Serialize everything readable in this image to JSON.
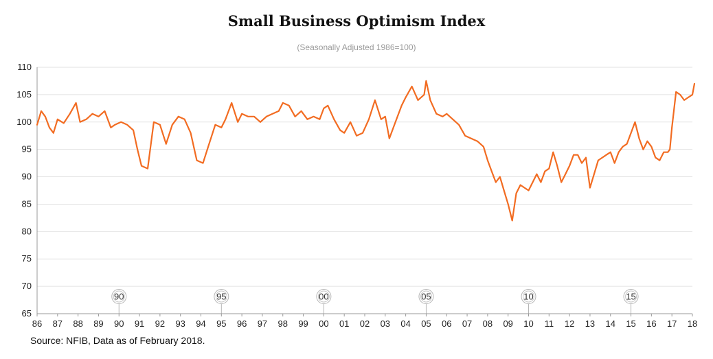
{
  "chart_data": {
    "type": "line",
    "title": "Small Business Optimism Index",
    "subtitle": "(Seasonally Adjusted 1986=100)",
    "source": "Source: NFIB, Data as of February 2018.",
    "xlabel": "",
    "ylabel": "",
    "xlim": [
      1986,
      2018
    ],
    "ylim": [
      65,
      110
    ],
    "y_ticks": [
      65,
      70,
      75,
      80,
      85,
      90,
      95,
      100,
      105,
      110
    ],
    "x_tick_labels": [
      "86",
      "87",
      "88",
      "89",
      "90",
      "91",
      "92",
      "93",
      "94",
      "95",
      "96",
      "97",
      "98",
      "99",
      "00",
      "01",
      "02",
      "03",
      "04",
      "05",
      "06",
      "07",
      "08",
      "09",
      "10",
      "11",
      "12",
      "13",
      "14",
      "15",
      "16",
      "17",
      "18"
    ],
    "grid": "horizontal",
    "line_color": "#f26c22",
    "markers": [
      {
        "label": "90",
        "x": 1990
      },
      {
        "label": "95",
        "x": 1995
      },
      {
        "label": "00",
        "x": 2000
      },
      {
        "label": "05",
        "x": 2005
      },
      {
        "label": "10",
        "x": 2010
      },
      {
        "label": "15",
        "x": 2015
      }
    ],
    "series": [
      {
        "x": [
          1986.0,
          1986.2,
          1986.4,
          1986.6,
          1986.8,
          1987.0,
          1987.3,
          1987.6,
          1987.9,
          1988.1,
          1988.4,
          1988.7,
          1989.0,
          1989.3,
          1989.6,
          1989.8,
          1990.1,
          1990.4,
          1990.7,
          1990.9,
          1991.1,
          1991.4,
          1991.7,
          1992.0,
          1992.3,
          1992.6,
          1992.9,
          1993.2,
          1993.5,
          1993.8,
          1994.1,
          1994.4,
          1994.7,
          1995.0,
          1995.2,
          1995.5,
          1995.8,
          1996.0,
          1996.3,
          1996.6,
          1996.9,
          1997.2,
          1997.5,
          1997.8,
          1998.0,
          1998.3,
          1998.6,
          1998.9,
          1999.2,
          1999.5,
          1999.8,
          2000.0,
          2000.2,
          2000.5,
          2000.8,
          2001.0,
          2001.3,
          2001.6,
          2001.9,
          2002.2,
          2002.5,
          2002.8,
          2003.0,
          2003.2,
          2003.5,
          2003.8,
          2004.0,
          2004.3,
          2004.6,
          2004.9,
          2005.0,
          2005.2,
          2005.5,
          2005.8,
          2006.0,
          2006.3,
          2006.6,
          2006.9,
          2007.2,
          2007.5,
          2007.8,
          2008.0,
          2008.2,
          2008.4,
          2008.6,
          2008.8,
          2009.0,
          2009.2,
          2009.4,
          2009.6,
          2009.8,
          2010.0,
          2010.2,
          2010.4,
          2010.6,
          2010.8,
          2011.0,
          2011.2,
          2011.4,
          2011.6,
          2011.8,
          2012.0,
          2012.2,
          2012.4,
          2012.6,
          2012.8,
          2013.0,
          2013.2,
          2013.4,
          2013.6,
          2013.8,
          2014.0,
          2014.2,
          2014.4,
          2014.6,
          2014.8,
          2015.0,
          2015.2,
          2015.4,
          2015.6,
          2015.8,
          2016.0,
          2016.2,
          2016.4,
          2016.6,
          2016.8,
          2016.9,
          2017.0,
          2017.2,
          2017.4,
          2017.6,
          2017.8,
          2018.0,
          2018.1
        ],
        "values": [
          99.5,
          102.0,
          101.0,
          99.0,
          98.0,
          100.5,
          99.8,
          101.5,
          103.5,
          100.0,
          100.5,
          101.5,
          101.0,
          102.0,
          99.0,
          99.5,
          100.0,
          99.5,
          98.5,
          95.0,
          92.0,
          91.5,
          100.0,
          99.5,
          96.0,
          99.5,
          101.0,
          100.5,
          98.0,
          93.0,
          92.5,
          96.0,
          99.5,
          99.0,
          100.5,
          103.5,
          100.0,
          101.5,
          101.0,
          101.0,
          100.0,
          101.0,
          101.5,
          102.0,
          103.5,
          103.0,
          101.0,
          102.0,
          100.5,
          101.0,
          100.5,
          102.5,
          103.0,
          100.5,
          98.5,
          98.0,
          100.0,
          97.5,
          98.0,
          100.5,
          104.0,
          100.5,
          101.0,
          97.0,
          100.0,
          103.0,
          104.5,
          106.5,
          104.0,
          105.0,
          107.5,
          104.0,
          101.5,
          101.0,
          101.5,
          100.5,
          99.5,
          97.5,
          97.0,
          96.5,
          95.5,
          93.0,
          91.0,
          89.0,
          90.0,
          87.5,
          85.0,
          82.0,
          87.0,
          88.5,
          88.0,
          87.5,
          89.0,
          90.5,
          89.0,
          91.0,
          91.5,
          94.5,
          92.0,
          89.0,
          90.5,
          92.0,
          94.0,
          94.0,
          92.5,
          93.5,
          88.0,
          90.5,
          93.0,
          93.5,
          94.0,
          94.5,
          92.5,
          94.5,
          95.5,
          96.0,
          98.0,
          100.0,
          97.0,
          95.0,
          96.5,
          95.5,
          93.5,
          93.0,
          94.5,
          94.5,
          95.0,
          99.0,
          105.5,
          105.0,
          104.0,
          104.5,
          105.0,
          107.0
        ]
      }
    ]
  }
}
